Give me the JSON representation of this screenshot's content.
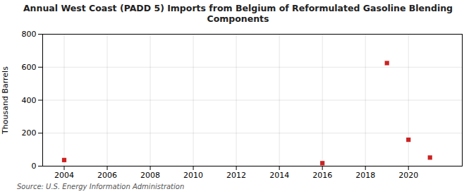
{
  "chart_data": {
    "type": "scatter",
    "title": "Annual West Coast (PADD 5) Imports from Belgium of Reformulated Gasoline Blending\nComponents",
    "ylabel": "Thousand Barrels",
    "source": "Source: U.S. Energy Information Administration",
    "x": [
      2004,
      2016,
      2019,
      2020,
      2021
    ],
    "values": [
      37,
      18,
      625,
      160,
      52
    ],
    "color": "#cc2222",
    "marker": "square",
    "xlim": [
      2003.0,
      2022.5
    ],
    "ylim": [
      0,
      800
    ],
    "xticks": [
      2004,
      2006,
      2008,
      2010,
      2012,
      2014,
      2016,
      2018,
      2020
    ],
    "yticks": [
      0,
      200,
      400,
      600,
      800
    ],
    "grid": true
  }
}
